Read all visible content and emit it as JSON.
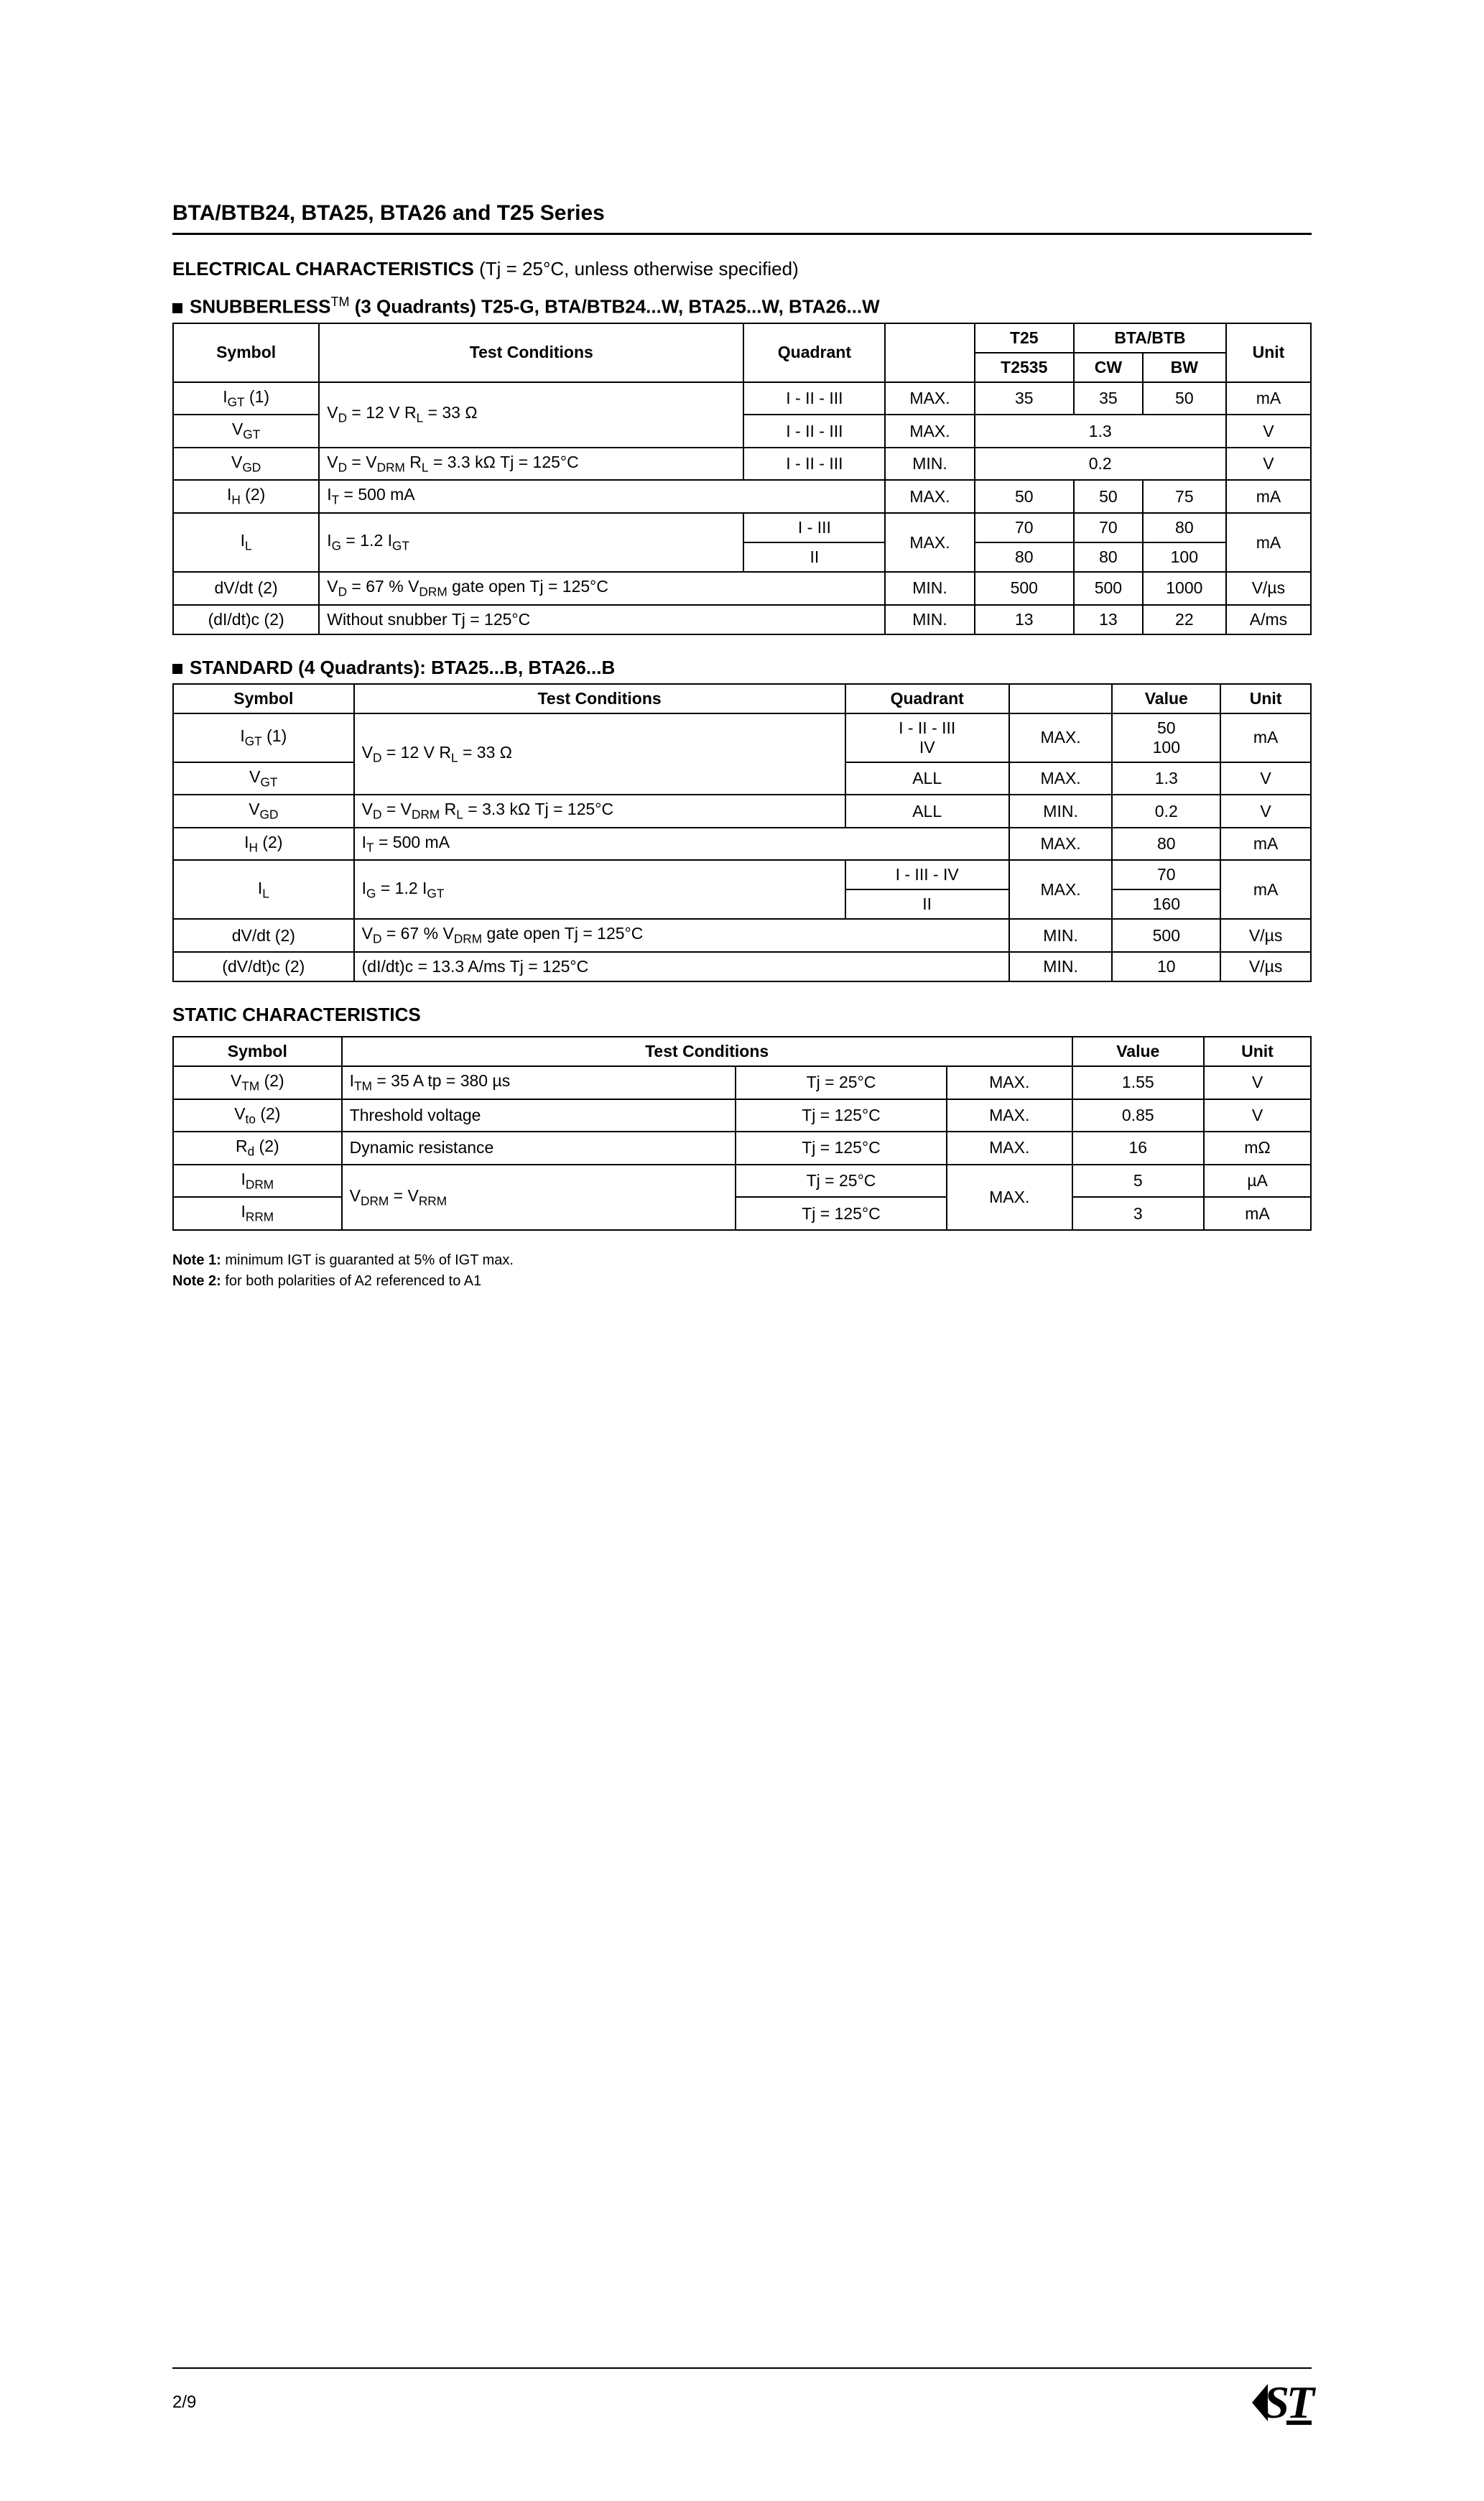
{
  "page": {
    "title": "BTA/BTB24, BTA25, BTA26 and T25 Series",
    "elec_head_bold": "ELECTRICAL CHARACTERISTICS",
    "elec_head_rest": " (Tj = 25°C, unless otherwise specified)",
    "snub_head_pre": "SNUBBERLESS",
    "snub_head_tm": "TM",
    "snub_head_rest": "  (3 Quadrants) T25-G, BTA/BTB24...W, BTA25...W, BTA26...W",
    "std_head": "STANDARD (4 Quadrants): BTA25...B, BTA26...B",
    "static_head": "STATIC CHARACTERISTICS",
    "note1_label": "Note 1:",
    "note1_text": " minimum IGT is guaranted at 5% of IGT max.",
    "note2_label": "Note 2:",
    "note2_text": " for both polarities of A2 referenced to A1",
    "page_no": "2/9"
  },
  "table1": {
    "headers": {
      "symbol": "Symbol",
      "test_cond": "Test Conditions",
      "quadrant": "Quadrant",
      "t25": "T25",
      "bta_btb": "BTA/BTB",
      "unit": "Unit",
      "t2535": "T2535",
      "cw": "CW",
      "bw": "BW"
    },
    "rows": {
      "r1": {
        "sym": "I<sub>GT</sub> (1)",
        "quad": "I - II - III",
        "limit": "MAX.",
        "t2535": "35",
        "cw": "35",
        "bw": "50",
        "unit": "mA"
      },
      "r1b": {
        "cond": "V<sub>D</sub> = 12 V      R<sub>L</sub> = 33 Ω"
      },
      "r2": {
        "sym": "V<sub>GT</sub>",
        "quad": "I - II - III",
        "limit": "MAX.",
        "val": "1.3",
        "unit": "V"
      },
      "r3": {
        "sym": "V<sub>GD</sub>",
        "cond": "V<sub>D</sub> = V<sub>DRM</sub>    R<sub>L</sub> = 3.3 kΩ    Tj = 125°C",
        "quad": "I - II - III",
        "limit": "MIN.",
        "val": "0.2",
        "unit": "V"
      },
      "r4": {
        "sym": "I<sub>H</sub> (2)",
        "cond": "I<sub>T</sub> = 500 mA",
        "limit": "MAX.",
        "t2535": "50",
        "cw": "50",
        "bw": "75",
        "unit": "mA"
      },
      "r5": {
        "sym": "I<sub>L</sub>",
        "cond": "I<sub>G</sub> = 1.2 I<sub>GT</sub>",
        "quad": "I - III",
        "limit": "MAX.",
        "t2535": "70",
        "cw": "70",
        "bw": "80",
        "unit": "mA"
      },
      "r5b": {
        "quad": "II",
        "t2535": "80",
        "cw": "80",
        "bw": "100"
      },
      "r6": {
        "sym": "dV/dt (2)",
        "cond": "V<sub>D</sub> =  67 % V<sub>DRM</sub>  gate open    Tj = 125°C",
        "limit": "MIN.",
        "t2535": "500",
        "cw": "500",
        "bw": "1000",
        "unit": "V/µs"
      },
      "r7": {
        "sym": "(dI/dt)c (2)",
        "cond": "Without snubber                     Tj = 125°C",
        "limit": "MIN.",
        "t2535": "13",
        "cw": "13",
        "bw": "22",
        "unit": "A/ms"
      }
    }
  },
  "table2": {
    "headers": {
      "symbol": "Symbol",
      "test_cond": "Test Conditions",
      "quadrant": "Quadrant",
      "value": "Value",
      "unit": "Unit"
    },
    "rows": {
      "r1": {
        "sym": "I<sub>GT</sub> (1)",
        "quad": "I - II - III\nIV",
        "limit": "MAX.",
        "val": "50\n100",
        "unit": "mA"
      },
      "r1b": {
        "cond": "V<sub>D</sub> = 12 V      R<sub>L</sub> = 33 Ω"
      },
      "r2": {
        "sym": "V<sub>GT</sub>",
        "quad": "ALL",
        "limit": "MAX.",
        "val": "1.3",
        "unit": "V"
      },
      "r3": {
        "sym": "V<sub>GD</sub>",
        "cond": "V<sub>D</sub> = V<sub>DRM</sub>    R<sub>L</sub> = 3.3 kΩ    Tj = 125°C",
        "quad": "ALL",
        "limit": "MIN.",
        "val": "0.2",
        "unit": "V"
      },
      "r4": {
        "sym": "I<sub>H</sub> (2)",
        "cond": "I<sub>T</sub> = 500 mA",
        "limit": "MAX.",
        "val": "80",
        "unit": "mA"
      },
      "r5": {
        "sym": "I<sub>L</sub>",
        "cond": "I<sub>G</sub> = 1.2 I<sub>GT</sub>",
        "quad": "I - III - IV",
        "limit": "MAX.",
        "val": "70",
        "unit": "mA"
      },
      "r5b": {
        "quad": "II",
        "val": "160"
      },
      "r6": {
        "sym": "dV/dt (2)",
        "cond": "V<sub>D</sub> =  67 % V<sub>DRM</sub>  gate open    Tj = 125°C",
        "limit": "MIN.",
        "val": "500",
        "unit": "V/µs"
      },
      "r7": {
        "sym": "(dV/dt)c (2)",
        "cond": "(dI/dt)c = 13.3 A/ms                Tj = 125°C",
        "limit": "MIN.",
        "val": "10",
        "unit": "V/µs"
      }
    }
  },
  "table3": {
    "headers": {
      "symbol": "Symbol",
      "test_cond": "Test Conditions",
      "value": "Value",
      "unit": "Unit"
    },
    "rows": {
      "r1": {
        "sym": "V<sub>TM</sub> (2)",
        "cond": "I<sub>TM</sub> = 35 A       tp = 380 µs",
        "tj": "Tj = 25°C",
        "limit": "MAX.",
        "val": "1.55",
        "unit": "V"
      },
      "r2": {
        "sym": "V<sub>to</sub> (2)",
        "cond": "Threshold voltage",
        "tj": "Tj = 125°C",
        "limit": "MAX.",
        "val": "0.85",
        "unit": "V"
      },
      "r3": {
        "sym": "R<sub>d</sub> (2)",
        "cond": "Dynamic resistance",
        "tj": "Tj = 125°C",
        "limit": "MAX.",
        "val": "16",
        "unit": "mΩ"
      },
      "r4": {
        "sym": "I<sub>DRM</sub>",
        "cond": "V<sub>DRM</sub> = V<sub>RRM</sub>",
        "tj": "Tj = 25°C",
        "limit": "MAX.",
        "val": "5",
        "unit": "µA"
      },
      "r5": {
        "sym": "I<sub>RRM</sub>",
        "tj": "Tj = 125°C",
        "val": "3",
        "unit": "mA"
      }
    }
  }
}
